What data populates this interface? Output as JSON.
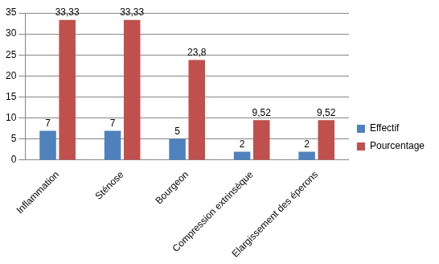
{
  "chart_data": {
    "type": "bar",
    "categories": [
      "Inflammation",
      "Sténose",
      "Bourgeon",
      "Compression extrinsèque",
      "Elargissement des éperons"
    ],
    "series": [
      {
        "name": "Effectif",
        "color": "#4f81bd",
        "values": [
          7,
          7,
          5,
          2,
          2
        ]
      },
      {
        "name": "Pourcentage",
        "color": "#c0504d",
        "values": [
          33.33,
          33.33,
          23.8,
          9.52,
          9.52
        ],
        "value_labels": [
          "33,33",
          "33,33",
          "23,8",
          "9,52",
          "9,52"
        ]
      }
    ],
    "ylim": [
      0,
      35
    ],
    "yticks": [
      0,
      5,
      10,
      15,
      20,
      25,
      30,
      35
    ],
    "grid": true,
    "legend": "right",
    "data_labels": true
  }
}
